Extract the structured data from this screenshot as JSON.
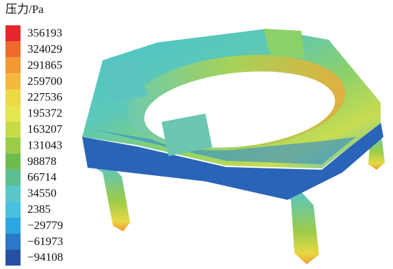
{
  "legend": {
    "title": "压力/Pa",
    "labels": [
      "356193",
      "324029",
      "291865",
      "259700",
      "227536",
      "195372",
      "163207",
      "131043",
      "98878",
      "66714",
      "34550",
      "2385",
      "−29779",
      "−61973",
      "−94108"
    ],
    "colors": [
      "#e5262a",
      "#ee6b2c",
      "#f39a32",
      "#f4b83c",
      "#eed844",
      "#e4e64c",
      "#c6da46",
      "#9ccc46",
      "#6cbc4e",
      "#5cbf92",
      "#5ac8c8",
      "#48c0e2",
      "#2aa6e0",
      "#2a78c8",
      "#2450a6"
    ]
  }
}
